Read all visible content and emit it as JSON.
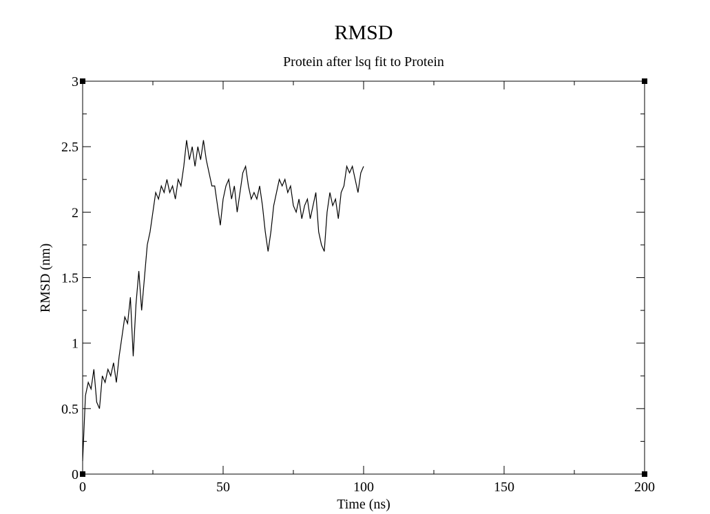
{
  "chart_data": {
    "type": "line",
    "title": "RMSD",
    "subtitle": "Protein after lsq fit to Protein",
    "x_label": "Time (ns)",
    "y_label": "RMSD (nm)",
    "xlim": [
      0,
      200
    ],
    "ylim": [
      0,
      3
    ],
    "xticks": [
      0,
      50,
      100,
      150,
      200
    ],
    "xminorticks": [
      25,
      75,
      125,
      175
    ],
    "yticks": [
      0,
      0.5,
      1,
      1.5,
      2,
      2.5,
      3
    ],
    "yminorticks": [
      0.25,
      0.75,
      1.25,
      1.75,
      2.25,
      2.75
    ],
    "series": [
      {
        "color": "#000000",
        "x": [
          0,
          1,
          2,
          3,
          4,
          5,
          6,
          7,
          8,
          9,
          10,
          11,
          12,
          13,
          14,
          15,
          16,
          17,
          18,
          19,
          20,
          21,
          22,
          23,
          24,
          25,
          26,
          27,
          28,
          29,
          30,
          31,
          32,
          33,
          34,
          35,
          36,
          37,
          38,
          39,
          40,
          41,
          42,
          43,
          44,
          45,
          46,
          47,
          48,
          49,
          50,
          51,
          52,
          53,
          54,
          55,
          56,
          57,
          58,
          59,
          60,
          61,
          62,
          63,
          64,
          65,
          66,
          67,
          68,
          69,
          70,
          71,
          72,
          73,
          74,
          75,
          76,
          77,
          78,
          79,
          80,
          81,
          82,
          83,
          84,
          85,
          86,
          87,
          88,
          89,
          90,
          91,
          92,
          93,
          94,
          95,
          96,
          97,
          98,
          99,
          100
        ],
        "values": [
          0.1,
          0.6,
          0.7,
          0.65,
          0.8,
          0.55,
          0.5,
          0.75,
          0.7,
          0.8,
          0.75,
          0.85,
          0.7,
          0.9,
          1.05,
          1.2,
          1.15,
          1.35,
          0.9,
          1.3,
          1.55,
          1.25,
          1.5,
          1.75,
          1.85,
          2.0,
          2.15,
          2.1,
          2.2,
          2.15,
          2.25,
          2.15,
          2.2,
          2.1,
          2.25,
          2.2,
          2.35,
          2.55,
          2.4,
          2.5,
          2.35,
          2.5,
          2.4,
          2.55,
          2.4,
          2.3,
          2.2,
          2.2,
          2.05,
          1.9,
          2.1,
          2.2,
          2.25,
          2.1,
          2.2,
          2.0,
          2.15,
          2.3,
          2.35,
          2.2,
          2.1,
          2.15,
          2.1,
          2.2,
          2.05,
          1.85,
          1.7,
          1.85,
          2.05,
          2.15,
          2.25,
          2.2,
          2.25,
          2.15,
          2.2,
          2.05,
          2.0,
          2.1,
          1.95,
          2.05,
          2.1,
          1.95,
          2.05,
          2.15,
          1.85,
          1.75,
          1.7,
          2.0,
          2.15,
          2.05,
          2.1,
          1.95,
          2.15,
          2.2,
          2.35,
          2.3,
          2.35,
          2.25,
          2.15,
          2.3,
          2.35
        ]
      }
    ]
  }
}
